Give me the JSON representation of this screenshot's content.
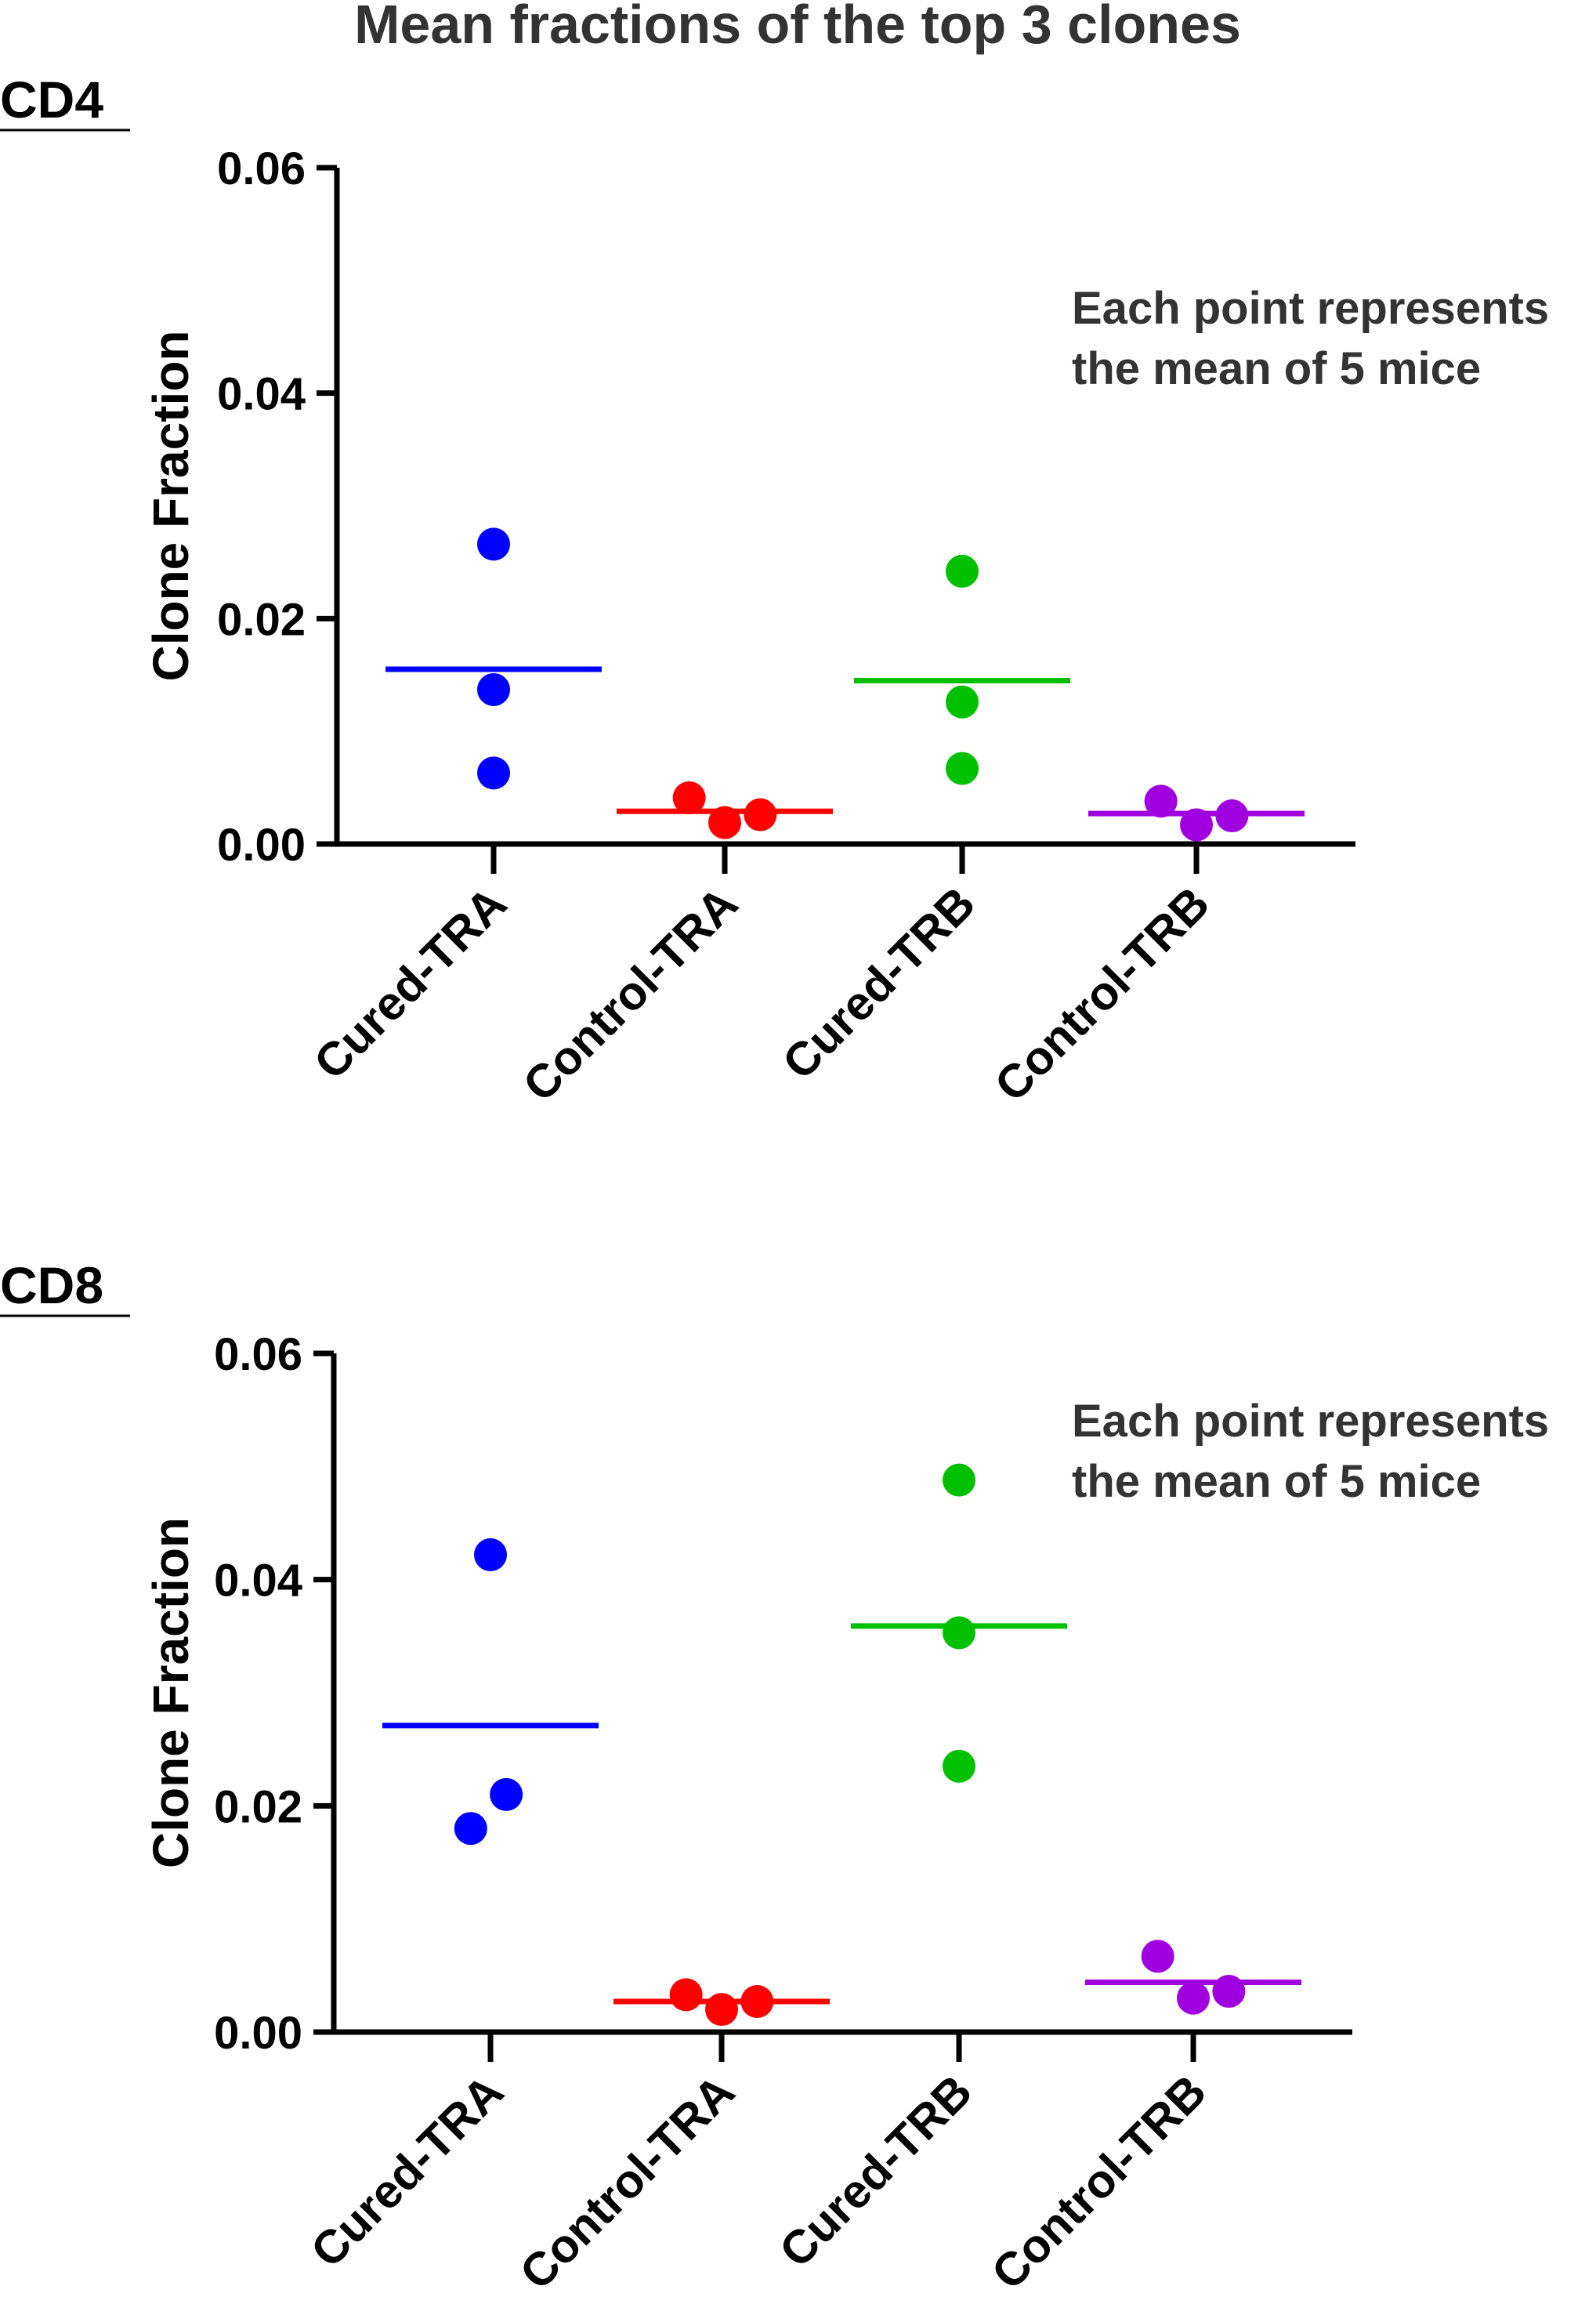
{
  "figure_title": "Mean fractions of the top 3 clones",
  "chart_data": [
    {
      "type": "scatter",
      "panel_label": "CD4",
      "title": "Mean fractions of the top 3 clones",
      "ylabel": "Clone Fraction",
      "xlabel": "",
      "ylim": [
        0,
        0.06
      ],
      "yticks": [
        "0.00",
        "0.02",
        "0.04",
        "0.06"
      ],
      "annotation": [
        "Each point represents",
        "the mean of 5 mice"
      ],
      "categories": [
        "Cured-TRA",
        "Control-TRA",
        "Cured-TRB",
        "Control-TRB"
      ],
      "series": [
        {
          "name": "Cured-TRA",
          "color": "#0000ff",
          "offsets": [
            0,
            0,
            0
          ],
          "values": [
            0.0266,
            0.0137,
            0.0063
          ],
          "mean": 0.0155
        },
        {
          "name": "Control-TRA",
          "color": "#ff0000",
          "offsets": [
            -0.9,
            0,
            0.9
          ],
          "values": [
            0.0041,
            0.0019,
            0.0026
          ],
          "mean": 0.0029
        },
        {
          "name": "Cured-TRB",
          "color": "#00c000",
          "offsets": [
            0,
            0,
            0
          ],
          "values": [
            0.0242,
            0.0126,
            0.0067
          ],
          "mean": 0.0145
        },
        {
          "name": "Control-TRB",
          "color": "#a000e0",
          "offsets": [
            -0.9,
            0,
            0.9
          ],
          "values": [
            0.0038,
            0.0017,
            0.0025
          ],
          "mean": 0.0027
        }
      ]
    },
    {
      "type": "scatter",
      "panel_label": "CD8",
      "title": "Mean fractions of the top 3 clones",
      "ylabel": "Clone Fraction",
      "xlabel": "",
      "ylim": [
        0,
        0.06
      ],
      "yticks": [
        "0.00",
        "0.02",
        "0.04",
        "0.06"
      ],
      "annotation": [
        "Each point represents",
        "the mean of 5 mice"
      ],
      "categories": [
        "Cured-TRA",
        "Control-TRA",
        "Cured-TRB",
        "Control-TRB"
      ],
      "series": [
        {
          "name": "Cured-TRA",
          "color": "#0000ff",
          "offsets": [
            0,
            -0.5,
            0.4
          ],
          "values": [
            0.0422,
            0.018,
            0.021
          ],
          "mean": 0.0271
        },
        {
          "name": "Control-TRA",
          "color": "#ff0000",
          "offsets": [
            -0.9,
            0,
            0.9
          ],
          "values": [
            0.0033,
            0.002,
            0.0027
          ],
          "mean": 0.0027
        },
        {
          "name": "Cured-TRB",
          "color": "#00c000",
          "offsets": [
            0,
            0,
            0
          ],
          "values": [
            0.0488,
            0.0353,
            0.0235
          ],
          "mean": 0.0359
        },
        {
          "name": "Control-TRB",
          "color": "#a000e0",
          "offsets": [
            -0.9,
            0,
            0.9
          ],
          "values": [
            0.0067,
            0.003,
            0.0036
          ],
          "mean": 0.0044
        }
      ]
    }
  ]
}
